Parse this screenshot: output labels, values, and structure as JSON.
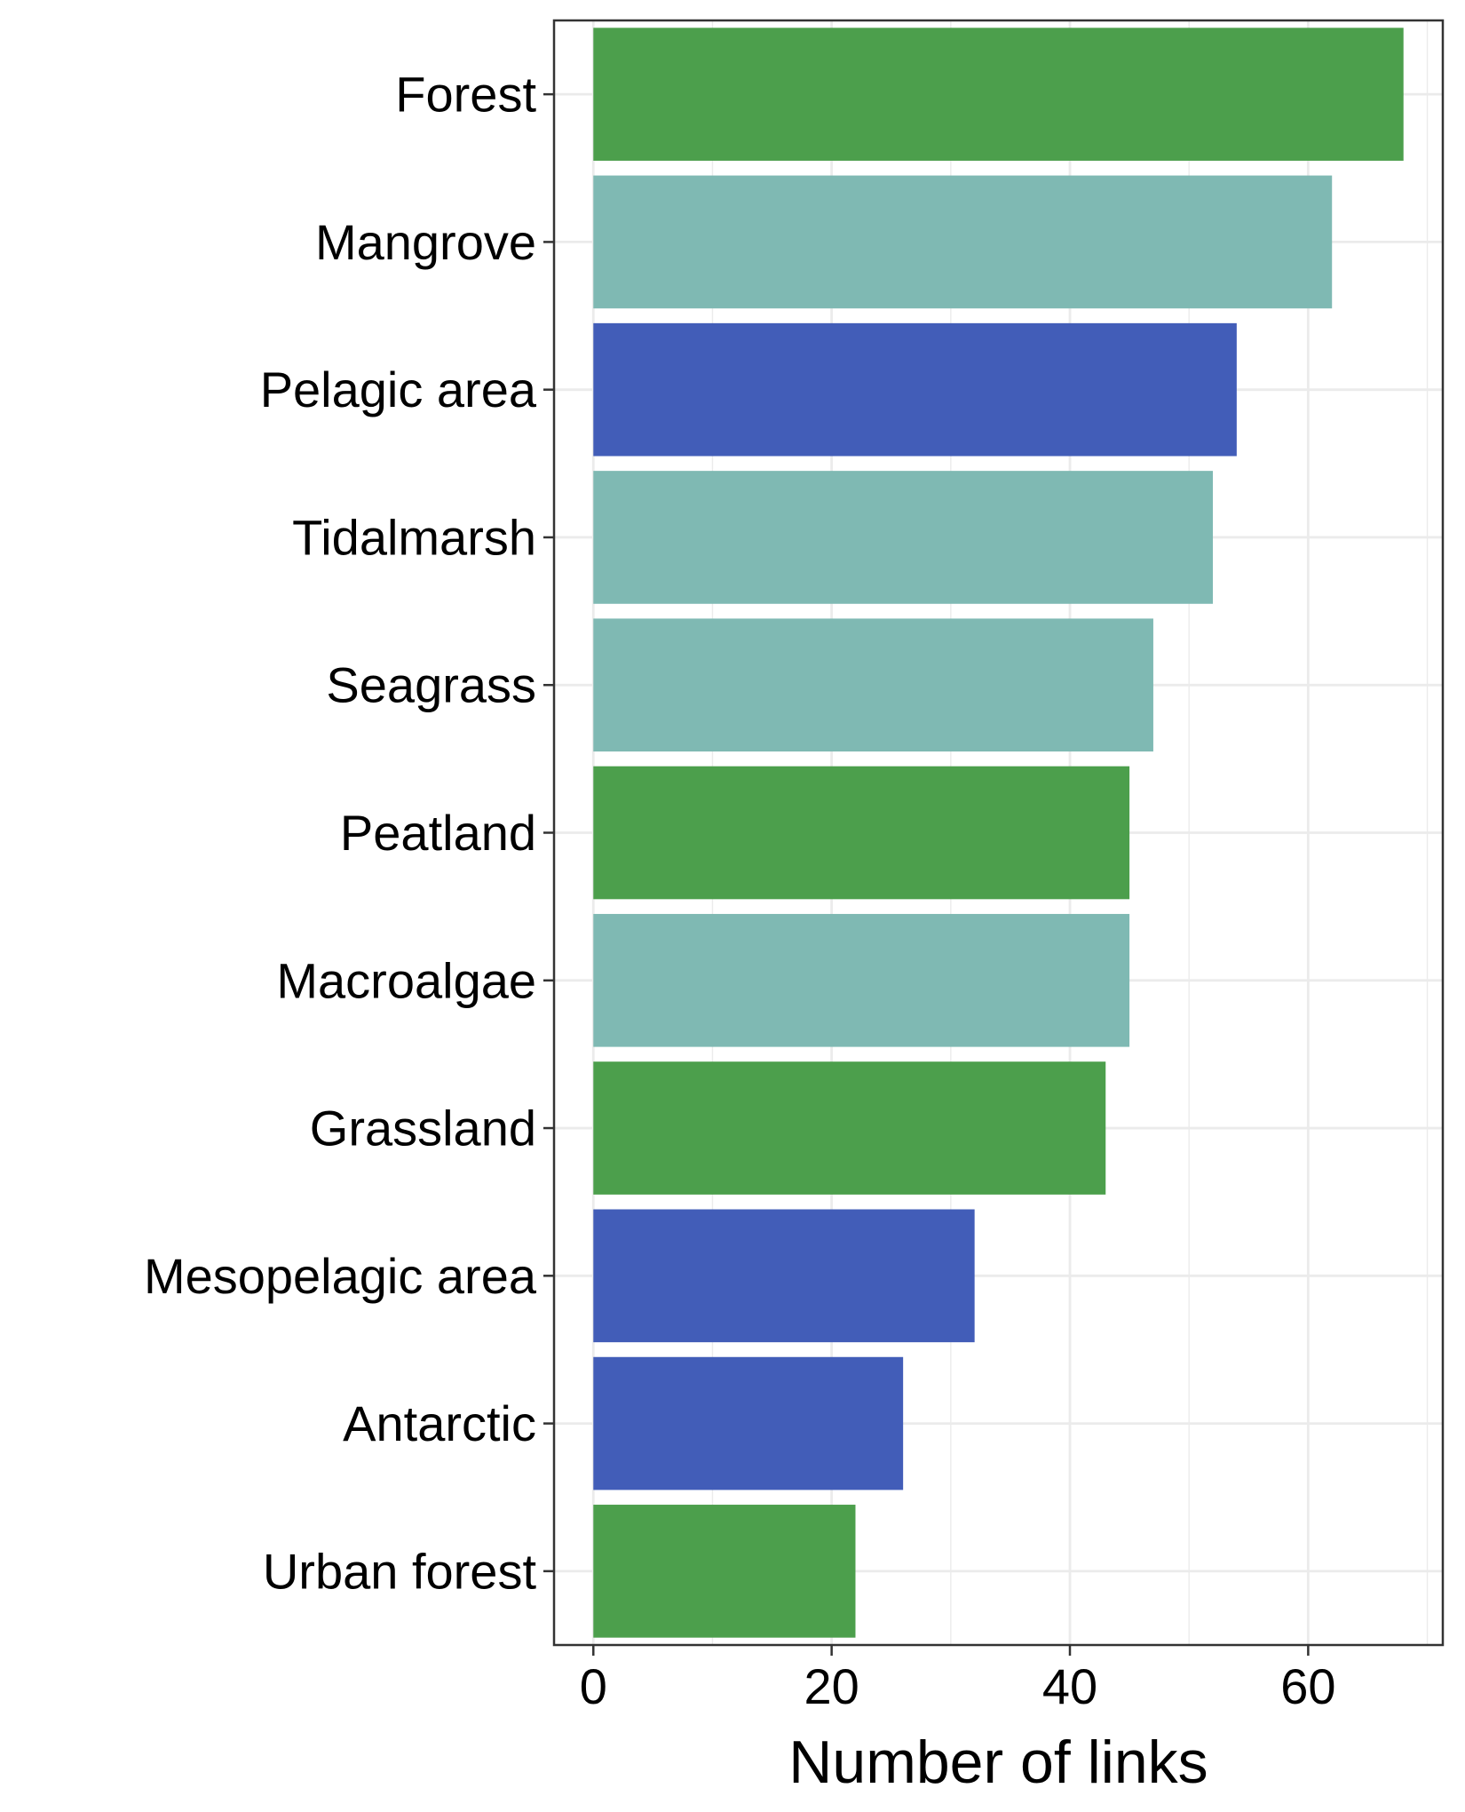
{
  "chart_data": {
    "type": "bar",
    "orientation": "horizontal",
    "categories": [
      "Forest",
      "Mangrove",
      "Pelagic area",
      "Tidalmarsh",
      "Seagrass",
      "Peatland",
      "Macroalgae",
      "Grassland",
      "Mesopelagic area",
      "Antarctic",
      "Urban forest"
    ],
    "values": [
      68,
      62,
      54,
      52,
      47,
      45,
      45,
      43,
      32,
      26,
      22
    ],
    "bar_colors": [
      "#4c9f4c",
      "#7fb9b3",
      "#425db8",
      "#7fb9b3",
      "#7fb9b3",
      "#4c9f4c",
      "#7fb9b3",
      "#4c9f4c",
      "#425db8",
      "#425db8",
      "#4c9f4c"
    ],
    "title": "",
    "xlabel": "Number of links",
    "ylabel": "",
    "xlim": [
      -3.3,
      71.3
    ],
    "x_ticks": [
      0,
      20,
      40,
      60
    ],
    "x_tick_labels": [
      "0",
      "20",
      "40",
      "60"
    ],
    "grid": true,
    "legend": "none"
  }
}
